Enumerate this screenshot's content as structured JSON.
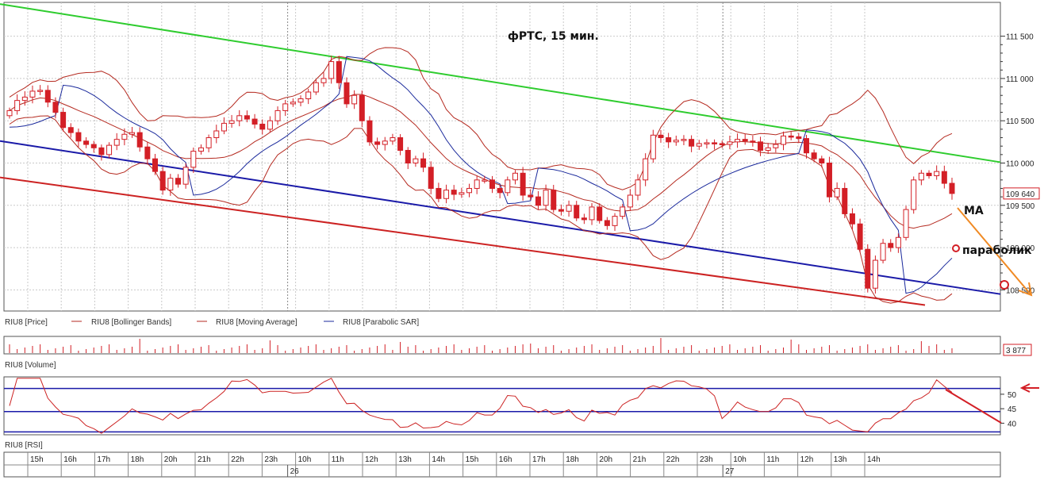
{
  "chart_title": "фРТС, 15 мин.",
  "annotations": {
    "ma": "MA",
    "parabolic": "параболик"
  },
  "legend": {
    "price": "RIU8 [Price]",
    "bollinger": "RIU8 [Bollinger Bands]",
    "ma": "RIU8 [Moving Average]",
    "sar": "RIU8 [Parabolic SAR]"
  },
  "volume_label": "RIU8 [Volume]",
  "rsi_label": "RIU8 [RSI]",
  "colors": {
    "bull": "#d31f26",
    "bear": "#d31f26",
    "bollinger": "#b52a20",
    "ma": "#b52a20",
    "sar": "#1b2a9c",
    "channel_top": "#2ecc2e",
    "channel_mid": "#1a1aa8",
    "channel_low": "#cc2222",
    "arrow": "#f08a24",
    "rsi_line": "#cc2222",
    "rsi_levels": "#1a1aa8"
  },
  "chart_data": [
    {
      "type": "candlestick",
      "title": "фРТС, 15 мин.",
      "y_ticks": [
        "111 500",
        "111 000",
        "110 500",
        "110 000",
        "109 500",
        "109 000",
        "108 500"
      ],
      "ylim": [
        108250,
        111900
      ],
      "current_price_label": "109 640",
      "time_labels": [
        "15h",
        "16h",
        "17h",
        "18h",
        "20h",
        "21h",
        "22h",
        "23h",
        "10h",
        "11h",
        "12h",
        "13h",
        "14h",
        "15h",
        "16h",
        "17h",
        "18h",
        "20h",
        "21h",
        "22h",
        "23h",
        "10h",
        "11h",
        "12h",
        "13h",
        "14h"
      ],
      "date_labels": [
        "26",
        "27"
      ],
      "close": [
        110620,
        110740,
        110780,
        110850,
        110860,
        110720,
        110600,
        110420,
        110360,
        110260,
        110220,
        110180,
        110100,
        110210,
        110280,
        110340,
        110360,
        110190,
        110050,
        109900,
        109680,
        109820,
        109750,
        109950,
        110140,
        110180,
        110300,
        110380,
        110470,
        110500,
        110560,
        110520,
        110460,
        110400,
        110500,
        110620,
        110700,
        110720,
        110760,
        110840,
        110950,
        111000,
        111200,
        110950,
        110700,
        110800,
        110500,
        110250,
        110220,
        110260,
        110300,
        110150,
        110000,
        110050,
        109950,
        109700,
        109580,
        109680,
        109630,
        109650,
        109700,
        109800,
        109800,
        109700,
        109650,
        109800,
        109880,
        109620,
        109600,
        109500,
        109680,
        109450,
        109430,
        109500,
        109350,
        109330,
        109480,
        109320,
        109260,
        109370,
        109480,
        109620,
        109800,
        110050,
        110330,
        110300,
        110250,
        110270,
        110280,
        110200,
        110230,
        110240,
        110230,
        110220,
        110250,
        110280,
        110260,
        110250,
        110150,
        110180,
        110220,
        110320,
        110310,
        110290,
        110120,
        110050,
        110000,
        109600,
        109700,
        109400,
        109280,
        108980,
        108520,
        108850,
        109050,
        109000,
        109120,
        109450,
        109800,
        109880,
        109850,
        109900,
        109760,
        109640
      ],
      "indicators": [
        "Bollinger Bands",
        "Moving Average",
        "Parabolic SAR"
      ],
      "channel": {
        "top": [
          [
            0,
            111880
          ],
          [
            1261,
            110010
          ]
        ],
        "middle": [
          [
            0,
            110260
          ],
          [
            1261,
            108450
          ]
        ],
        "bottom": [
          [
            0,
            109830
          ],
          [
            1166,
            108320
          ]
        ]
      }
    },
    {
      "type": "bar",
      "title": "RIU8 [Volume]",
      "last_value_label": "3 877"
    },
    {
      "type": "line",
      "title": "RIU8 [RSI]",
      "y_ticks": [
        "50",
        "45",
        "40"
      ],
      "levels": [
        52,
        44,
        37
      ],
      "ylim": [
        36,
        56
      ]
    }
  ]
}
